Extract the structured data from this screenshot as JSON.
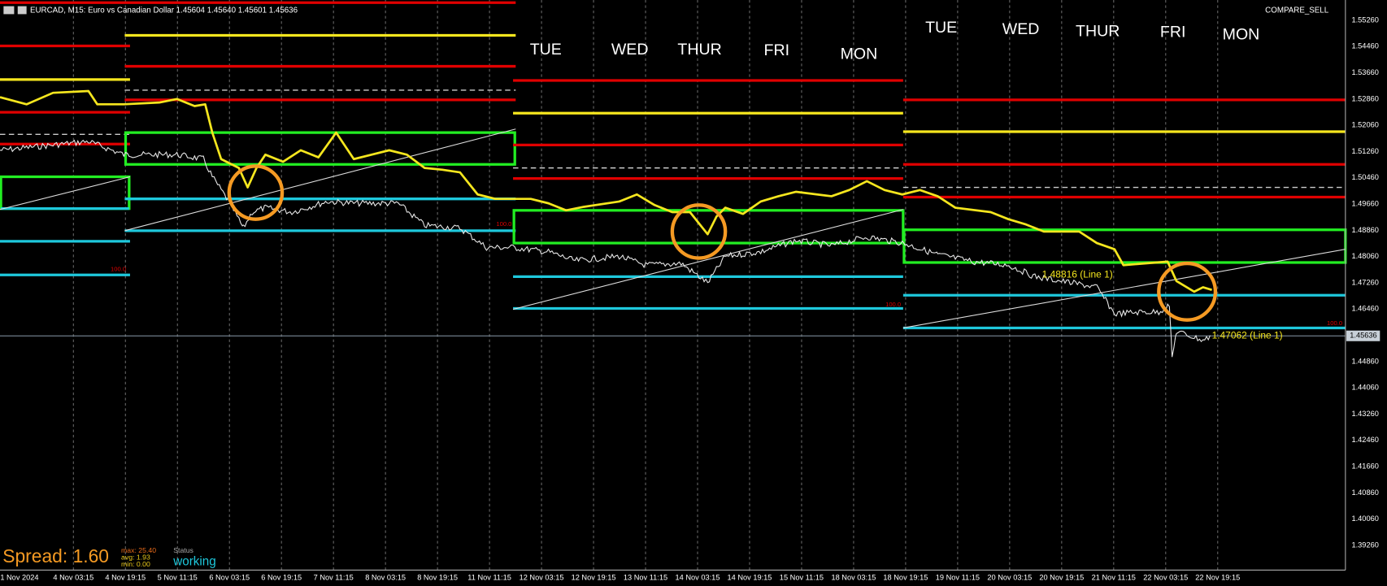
{
  "header": {
    "symbol": "EURCAD, M15:  Euro vs Canadian Dollar  1.45604 1.45640 1.45601 1.45636",
    "indicator": "COMPARE_SELL"
  },
  "yaxis": {
    "labels": [
      "1.55260",
      "1.54460",
      "1.53660",
      "1.52860",
      "1.52060",
      "1.51260",
      "1.50460",
      "1.49660",
      "1.48860",
      "1.48060",
      "1.47260",
      "1.46460",
      "1.44860",
      "1.44060",
      "1.43260",
      "1.42460",
      "1.41660",
      "1.40860",
      "1.40060",
      "1.39260"
    ],
    "current": "1.45636"
  },
  "xaxis": {
    "labels": [
      "1 Nov 2024",
      "4 Nov 03:15",
      "4 Nov 19:15",
      "5 Nov 11:15",
      "6 Nov 03:15",
      "6 Nov 19:15",
      "7 Nov 11:15",
      "8 Nov 03:15",
      "8 Nov 19:15",
      "11 Nov 11:15",
      "12 Nov 03:15",
      "12 Nov 19:15",
      "13 Nov 11:15",
      "14 Nov 03:15",
      "14 Nov 19:15",
      "15 Nov 11:15",
      "18 Nov 03:15",
      "18 Nov 19:15",
      "19 Nov 11:15",
      "20 Nov 03:15",
      "20 Nov 19:15",
      "21 Nov 11:15",
      "22 Nov 03:15",
      "22 Nov 19:15"
    ]
  },
  "days": [
    "TUE",
    "WED",
    "THUR",
    "FRI",
    "MON",
    "TUE",
    "WED",
    "THUR",
    "FRI",
    "MON"
  ],
  "annotations": {
    "line1_upper": "1.48816 (Line 1)",
    "line1_lower": "1.47062 (Line 1)",
    "fib": [
      "100.0",
      "100.0",
      "100.0",
      "100.0"
    ]
  },
  "spread": {
    "label": "Spread: 1.60",
    "max": "max: 25.40",
    "avg": "avg: 1.93",
    "min": "min: 0.00",
    "status_label": "Status",
    "status": "working"
  }
}
